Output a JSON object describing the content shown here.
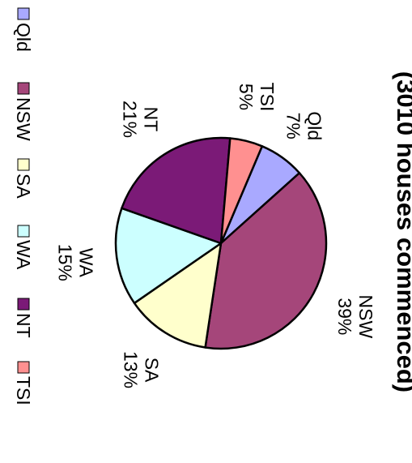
{
  "chart_data": {
    "type": "pie",
    "title": "(3010 houses commenced)",
    "categories": [
      "Qld",
      "NSW",
      "SA",
      "WA",
      "NT",
      "TSI"
    ],
    "values": [
      7,
      39,
      13,
      15,
      21,
      5
    ],
    "value_labels": [
      "7%",
      "39%",
      "13%",
      "15%",
      "21%",
      "5%"
    ],
    "colors": [
      "#A9A9FF",
      "#A5467A",
      "#FFFFCC",
      "#CCFFFF",
      "#7B1A77",
      "#FF9090"
    ],
    "legend": [
      "Qld",
      "NSW",
      "SA",
      "WA",
      "NT",
      "TSI"
    ],
    "legend_position": "bottom",
    "rotation": "90deg-clockwise"
  }
}
